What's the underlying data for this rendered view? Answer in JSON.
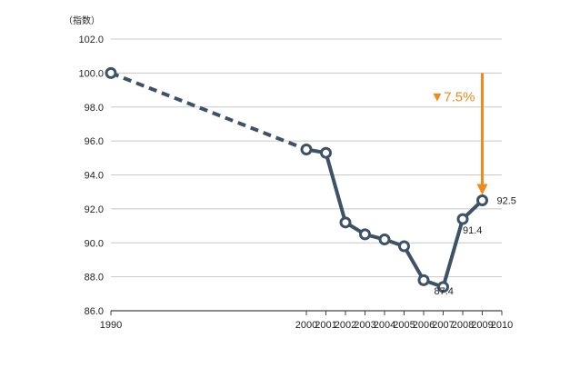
{
  "chart_data": {
    "type": "line",
    "title": "",
    "ylabel": "（指数）",
    "xlabel": "",
    "ylim": [
      86.0,
      102.0
    ],
    "y_ticks": [
      "102.0",
      "100.0",
      "98.0",
      "96.0",
      "94.0",
      "92.0",
      "90.0",
      "88.0",
      "86.0"
    ],
    "x_range": [
      1990,
      2010
    ],
    "x_ticks": [
      "1990",
      "2000",
      "2001",
      "2002",
      "2003",
      "2004",
      "2005",
      "2006",
      "2007",
      "2008",
      "2009",
      "2010"
    ],
    "grid": true,
    "series": [
      {
        "x": [
          1990,
          2000,
          2001,
          2002,
          2003,
          2004,
          2005,
          2006,
          2007,
          2008,
          2009
        ],
        "values": [
          100.0,
          95.5,
          95.3,
          91.2,
          90.5,
          90.2,
          89.8,
          87.8,
          87.4,
          91.4,
          92.5
        ],
        "dashed_segment": [
          1990,
          2000
        ],
        "color": "#3d5266"
      }
    ],
    "data_labels": [
      {
        "x": 2007,
        "y": 87.4,
        "text": "87.4"
      },
      {
        "x": 2008,
        "y": 91.4,
        "text": "91.4"
      },
      {
        "x": 2009,
        "y": 92.5,
        "text": "92.5"
      }
    ],
    "annotation": {
      "text": "▼7.5%",
      "color": "#f08a1c",
      "x": 2009,
      "from_y": 100.0,
      "to_y": 92.5
    }
  }
}
